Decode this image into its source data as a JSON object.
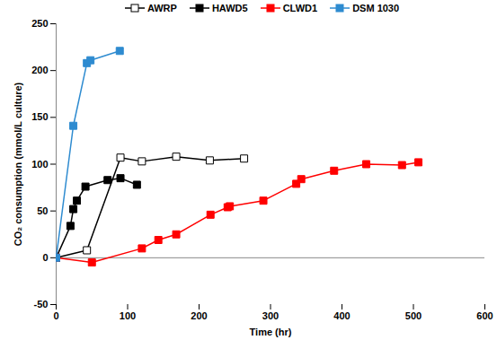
{
  "chart_data": {
    "type": "line",
    "x_label": "Time (hr)",
    "y_label": "CO₂ consumption (mmol/L culture)",
    "xlim": [
      0,
      600
    ],
    "xticks": [
      0,
      100,
      200,
      300,
      400,
      500,
      600
    ],
    "ylim": [
      -50,
      250
    ],
    "yticks": [
      -50,
      0,
      50,
      100,
      150,
      200,
      250
    ],
    "grid": false,
    "legend": "top",
    "series": [
      {
        "name": "AWRP",
        "color": "#000000",
        "marker": "open-square",
        "x": [
          0,
          43,
          90,
          120,
          168,
          215,
          263
        ],
        "values": [
          0,
          8,
          107,
          103,
          108,
          104,
          106
        ]
      },
      {
        "name": "HAWD5",
        "color": "#000000",
        "marker": "square",
        "x": [
          0,
          20,
          24,
          29,
          41,
          72,
          90,
          113
        ],
        "values": [
          0,
          34,
          52,
          61,
          76,
          83,
          85,
          78
        ]
      },
      {
        "name": "CLWD1",
        "color": "#ff0000",
        "marker": "square",
        "x": [
          0,
          50,
          120,
          143,
          168,
          216,
          240,
          243,
          290,
          336,
          343,
          389,
          434,
          484,
          507
        ],
        "values": [
          0,
          -5,
          10,
          19,
          25,
          46,
          54,
          55,
          61,
          79,
          84,
          93,
          100,
          99,
          102
        ]
      },
      {
        "name": "DSM 1030",
        "color": "#2e8bd0",
        "marker": "square",
        "x": [
          0,
          24,
          43,
          48,
          89
        ],
        "values": [
          0,
          141,
          208,
          211,
          221
        ]
      }
    ]
  }
}
